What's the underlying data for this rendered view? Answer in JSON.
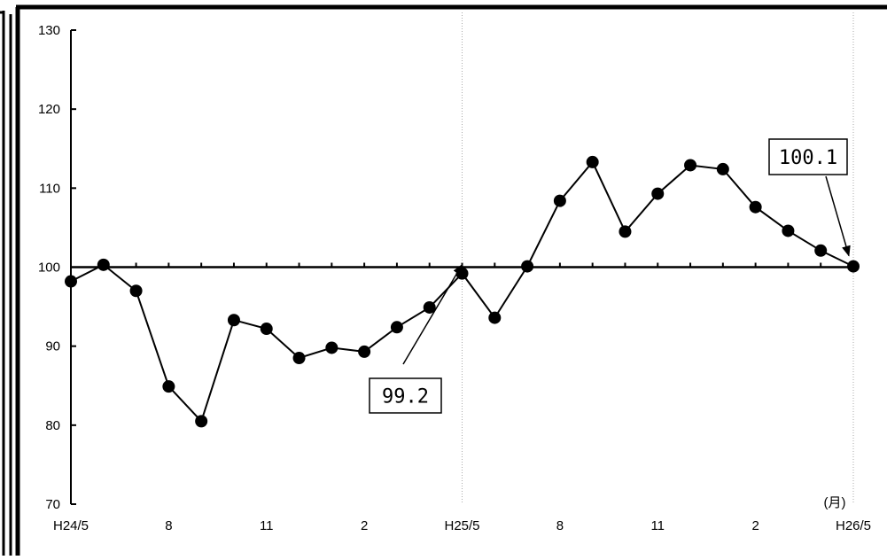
{
  "chart_data": {
    "type": "line",
    "title": "",
    "xlabel": "",
    "ylabel": "",
    "x_unit_label": "(月)",
    "ylim": [
      70,
      130
    ],
    "yticks": [
      70,
      80,
      90,
      100,
      110,
      120,
      130
    ],
    "x": [
      "H24/5",
      "H24/6",
      "H24/7",
      "H24/8",
      "H24/9",
      "H24/10",
      "H24/11",
      "H24/12",
      "H25/1",
      "H25/2",
      "H25/3",
      "H25/4",
      "H25/5",
      "H25/6",
      "H25/7",
      "H25/8",
      "H25/9",
      "H25/10",
      "H25/11",
      "H25/12",
      "H26/1",
      "H26/2",
      "H26/3",
      "H26/4",
      "H26/5"
    ],
    "xtick_labels": [
      {
        "index": 0,
        "text": "H24/5"
      },
      {
        "index": 3,
        "text": "8"
      },
      {
        "index": 6,
        "text": "11"
      },
      {
        "index": 9,
        "text": "2"
      },
      {
        "index": 12,
        "text": "H25/5"
      },
      {
        "index": 15,
        "text": "8"
      },
      {
        "index": 18,
        "text": "11"
      },
      {
        "index": 21,
        "text": "2"
      },
      {
        "index": 24,
        "text": "H26/5"
      }
    ],
    "series": [
      {
        "values": [
          98.2,
          100.3,
          97.0,
          84.9,
          80.5,
          93.3,
          92.2,
          88.5,
          89.8,
          89.3,
          92.4,
          94.9,
          99.2,
          93.6,
          100.1,
          108.4,
          113.3,
          104.5,
          109.3,
          112.9,
          112.4,
          107.6,
          104.6,
          102.1,
          100.1
        ]
      }
    ],
    "reference_line": 100,
    "vertical_lines_at": [
      "H25/5",
      "H26/5"
    ],
    "annotations": [
      {
        "text": "99.2",
        "target": "H25/5"
      },
      {
        "text": "100.1",
        "target": "H26/5"
      }
    ],
    "grid": false,
    "legend": "none"
  }
}
